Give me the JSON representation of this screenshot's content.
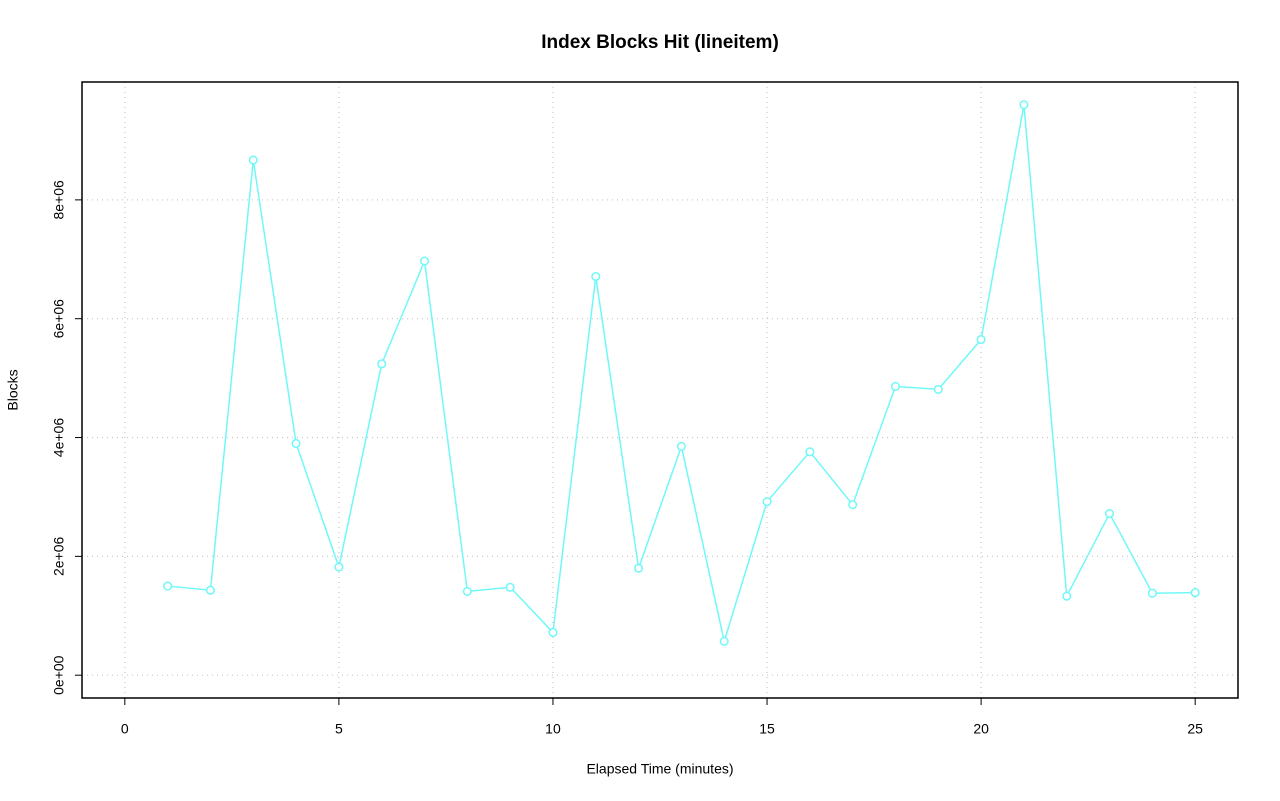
{
  "chart_data": {
    "type": "line",
    "title": "Index Blocks Hit (lineitem)",
    "x_label": "Elapsed Time (minutes)",
    "y_label": "Blocks",
    "x": [
      1,
      2,
      3,
      4,
      5,
      6,
      7,
      8,
      9,
      10,
      11,
      12,
      13,
      14,
      15,
      16,
      17,
      18,
      19,
      20,
      21,
      22,
      23,
      24,
      25
    ],
    "series": [
      {
        "name": "lineitem",
        "color": "#70f8f8",
        "values": [
          1500000,
          1430000,
          8670000,
          3900000,
          1820000,
          5240000,
          6970000,
          1410000,
          1480000,
          720000,
          6710000,
          1800000,
          3850000,
          570000,
          2920000,
          3760000,
          2870000,
          4860000,
          4810000,
          5650000,
          9600000,
          1330000,
          2720000,
          1380000,
          1390000
        ]
      }
    ],
    "xlim": [
      -1,
      26
    ],
    "ylim": [
      -384000,
      9984000
    ],
    "xticks": [
      0,
      5,
      10,
      15,
      20,
      25
    ],
    "yticks": [
      {
        "value": 0,
        "label": "0e+00"
      },
      {
        "value": 2000000,
        "label": "2e+06"
      },
      {
        "value": 4000000,
        "label": "4e+06"
      },
      {
        "value": 6000000,
        "label": "6e+06"
      },
      {
        "value": 8000000,
        "label": "8e+06"
      }
    ],
    "grid": true
  }
}
